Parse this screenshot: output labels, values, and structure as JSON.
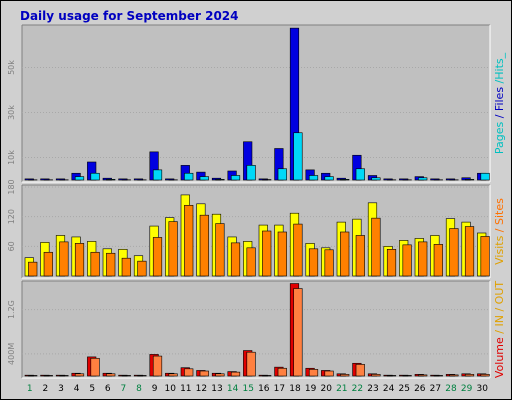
{
  "chart_data": {
    "type": "bar",
    "title": "Daily usage for September 2024",
    "days": [
      "1",
      "2",
      "3",
      "4",
      "5",
      "6",
      "7",
      "8",
      "9",
      "10",
      "11",
      "12",
      "13",
      "14",
      "15",
      "16",
      "17",
      "18",
      "19",
      "20",
      "21",
      "22",
      "23",
      "24",
      "25",
      "26",
      "27",
      "28",
      "29",
      "30"
    ],
    "weekend_days": [
      "1",
      "7",
      "8",
      "14",
      "15",
      "21",
      "22",
      "28",
      "29"
    ],
    "panels": [
      {
        "id": "hits",
        "side_label": [
          "Pages",
          " / ",
          "Files",
          " /",
          "Hits_"
        ],
        "side_colors": [
          "#00c0c0",
          "#0000c0",
          "#0000c0",
          "#00c0c0",
          "#00c0c0"
        ],
        "ticks": [
          "10k",
          "30k",
          "50k"
        ],
        "tick_values": [
          10000,
          30000,
          50000
        ],
        "ylim": [
          0,
          68000
        ],
        "series": [
          {
            "name": "Files",
            "color": "#0000e0",
            "values": [
              500,
              500,
              500,
              3000,
              8000,
              800,
              500,
              500,
              12500,
              500,
              6500,
              3500,
              800,
              4000,
              17000,
              500,
              14000,
              67500,
              4500,
              3000,
              800,
              11000,
              2000,
              500,
              500,
              1500,
              500,
              500,
              1000,
              3000
            ]
          },
          {
            "name": "Pages",
            "color": "#00d8f8",
            "values": [
              100,
              100,
              100,
              1500,
              3000,
              300,
              100,
              100,
              4500,
              100,
              3000,
              1500,
              300,
              2000,
              6500,
              200,
              5000,
              21000,
              2000,
              1500,
              300,
              5000,
              1000,
              100,
              100,
              1000,
              100,
              100,
              300,
              3000
            ]
          }
        ]
      },
      {
        "id": "visits",
        "side_label": [
          "Visits",
          " / ",
          "Sites"
        ],
        "side_colors": [
          "#e0a000",
          "#ff7000",
          "#ff7000"
        ],
        "ticks": [
          "60",
          "120",
          "180"
        ],
        "tick_values": [
          60,
          120,
          180
        ],
        "ylim": [
          0,
          180
        ],
        "series": [
          {
            "name": "Sites",
            "color": "#ffff00",
            "values": [
              37,
              68,
              82,
              79,
              70,
              55,
              54,
              41,
              101,
              118,
              164,
              146,
              125,
              79,
              70,
              103,
              103,
              127,
              66,
              57,
              109,
              115,
              148,
              60,
              72,
              76,
              82,
              116,
              109,
              87
            ]
          },
          {
            "name": "Visits",
            "color": "#ff8000",
            "values": [
              28,
              48,
              69,
              66,
              48,
              46,
              36,
              30,
              78,
              110,
              143,
              123,
              106,
              67,
              57,
              91,
              89,
              105,
              55,
              53,
              89,
              82,
              117,
              54,
              63,
              69,
              64,
              96,
              100,
              80
            ]
          }
        ]
      },
      {
        "id": "volume",
        "side_label": [
          "Volume",
          " / ",
          "IN",
          " / ",
          "OUT"
        ],
        "side_colors": [
          "#e00000",
          "#e0a000",
          "#e0a000",
          "#e0a000",
          "#e0a000"
        ],
        "ticks": [
          "400M",
          "1.2G"
        ],
        "tick_values": [
          400,
          1200
        ],
        "ylim": [
          0,
          1680
        ],
        "series": [
          {
            "name": "Volume",
            "color": "#e00000",
            "values": [
              15,
              15,
              15,
              50,
              345,
              50,
              15,
              15,
              390,
              50,
              150,
              100,
              50,
              80,
              460,
              15,
              160,
              1670,
              140,
              100,
              40,
              230,
              40,
              15,
              15,
              30,
              15,
              30,
              40,
              40
            ]
          },
          {
            "name": "OUT",
            "color": "#ff8040",
            "values": [
              10,
              10,
              10,
              40,
              320,
              40,
              10,
              10,
              360,
              40,
              130,
              90,
              40,
              70,
              430,
              10,
              140,
              1580,
              120,
              90,
              30,
              210,
              30,
              10,
              10,
              20,
              10,
              20,
              30,
              30
            ]
          }
        ]
      }
    ]
  }
}
